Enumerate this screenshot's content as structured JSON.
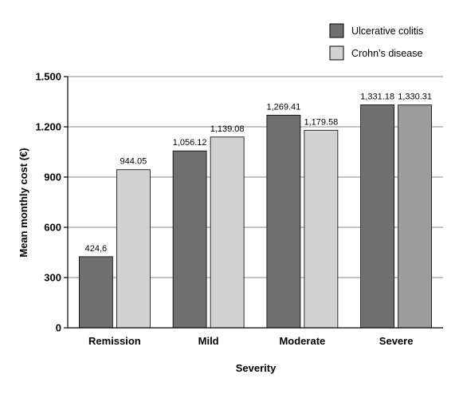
{
  "chart_data": {
    "type": "bar",
    "categories": [
      "Remission",
      "Mild",
      "Moderate",
      "Severe"
    ],
    "series": [
      {
        "name": "Ulcerative colitis",
        "values": [
          424.6,
          1056.12,
          1269.41,
          1331.18
        ],
        "labels": [
          "424,6",
          "1,056.12",
          "1,269.41",
          "1,331.18"
        ],
        "color": "#707070"
      },
      {
        "name": "Crohn’s disease",
        "values": [
          944.05,
          1139.08,
          1179.58,
          1330.31
        ],
        "labels": [
          "944.05",
          "1,139.08",
          "1,179.58",
          "1,330.31"
        ],
        "colors": [
          "#d2d2d2",
          "#d2d2d2",
          "#d2d2d2",
          "#9c9c9c"
        ]
      }
    ],
    "xlabel": "Severity",
    "ylabel": "Mean monthly cost (€)",
    "ylim": [
      0,
      1500
    ],
    "yticks": [
      0,
      300,
      600,
      900,
      1200,
      1500
    ],
    "ytick_labels": [
      "0",
      "300",
      "600",
      "900",
      "1.200",
      "1.500"
    ],
    "grid": true,
    "legend_position": "top-right"
  }
}
